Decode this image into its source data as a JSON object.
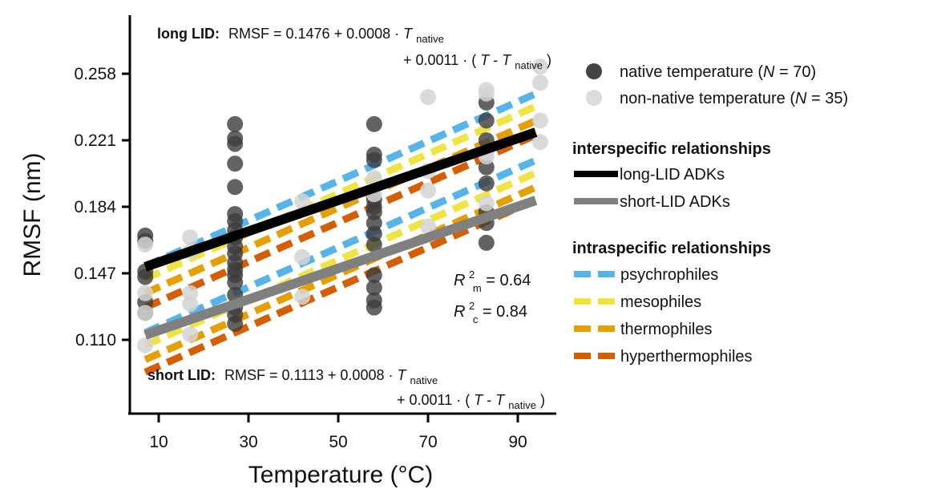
{
  "chart_data": {
    "type": "scatter",
    "title": "",
    "xlabel": "Temperature (°C)",
    "ylabel": "RMSF (nm)",
    "xlim": [
      3,
      96
    ],
    "ylim": [
      0.092,
      0.268
    ],
    "xticks": [
      10,
      30,
      50,
      70,
      90
    ],
    "xtick_labels": [
      "10",
      "30",
      "50",
      "70",
      "90"
    ],
    "yticks": [
      0.11,
      0.147,
      0.184,
      0.221,
      0.258
    ],
    "ytick_labels": [
      "0.110",
      "0.147",
      "0.184",
      "0.221",
      "0.258"
    ],
    "grid": false,
    "legend_placement": "right",
    "scatter_series": [
      {
        "name": "native temperature",
        "label": "native temperature (",
        "n_label": "N",
        "n_value": " = 70)",
        "color": "#3c3c3c",
        "points": [
          [
            7,
            0.168
          ],
          [
            7,
            0.165
          ],
          [
            7,
            0.148
          ],
          [
            7,
            0.145
          ],
          [
            7,
            0.131
          ],
          [
            7,
            0.125
          ],
          [
            27,
            0.23
          ],
          [
            27,
            0.222
          ],
          [
            27,
            0.219
          ],
          [
            27,
            0.208
          ],
          [
            27,
            0.195
          ],
          [
            27,
            0.18
          ],
          [
            27,
            0.176
          ],
          [
            27,
            0.171
          ],
          [
            27,
            0.167
          ],
          [
            27,
            0.162
          ],
          [
            27,
            0.158
          ],
          [
            27,
            0.153
          ],
          [
            27,
            0.149
          ],
          [
            27,
            0.146
          ],
          [
            27,
            0.142
          ],
          [
            27,
            0.135
          ],
          [
            27,
            0.128
          ],
          [
            27,
            0.124
          ],
          [
            27,
            0.119
          ],
          [
            58,
            0.23
          ],
          [
            58,
            0.213
          ],
          [
            58,
            0.21
          ],
          [
            58,
            0.188
          ],
          [
            58,
            0.184
          ],
          [
            58,
            0.181
          ],
          [
            58,
            0.175
          ],
          [
            58,
            0.169
          ],
          [
            58,
            0.163
          ],
          [
            58,
            0.146
          ],
          [
            58,
            0.139
          ],
          [
            58,
            0.132
          ],
          [
            58,
            0.128
          ],
          [
            83,
            0.242
          ],
          [
            83,
            0.232
          ],
          [
            83,
            0.221
          ],
          [
            83,
            0.206
          ],
          [
            83,
            0.197
          ],
          [
            83,
            0.181
          ],
          [
            83,
            0.175
          ],
          [
            83,
            0.164
          ]
        ]
      },
      {
        "name": "non-native temperature",
        "label": "non-native temperature (",
        "n_label": "N",
        "n_value": " = 35)",
        "color": "#d4d4d4",
        "points": [
          [
            7,
            0.163
          ],
          [
            7,
            0.136
          ],
          [
            7,
            0.125
          ],
          [
            7,
            0.107
          ],
          [
            17,
            0.167
          ],
          [
            17,
            0.159
          ],
          [
            17,
            0.136
          ],
          [
            17,
            0.13
          ],
          [
            17,
            0.113
          ],
          [
            42,
            0.187
          ],
          [
            42,
            0.156
          ],
          [
            42,
            0.134
          ],
          [
            58,
            0.2
          ],
          [
            58,
            0.191
          ],
          [
            70,
            0.245
          ],
          [
            70,
            0.204
          ],
          [
            70,
            0.193
          ],
          [
            70,
            0.173
          ],
          [
            83,
            0.249
          ],
          [
            83,
            0.247
          ],
          [
            83,
            0.214
          ],
          [
            83,
            0.212
          ],
          [
            83,
            0.186
          ],
          [
            95,
            0.262
          ],
          [
            95,
            0.253
          ],
          [
            95,
            0.232
          ],
          [
            95,
            0.22
          ]
        ]
      }
    ],
    "interspecific": {
      "title": "interspecific relationships",
      "lines": [
        {
          "name": "long-LID ADKs",
          "color": "#000000",
          "x": [
            7,
            94
          ],
          "y": [
            0.1506,
            0.2255
          ]
        },
        {
          "name": "short-LID ADKs",
          "color": "#808080",
          "x": [
            7,
            94
          ],
          "y": [
            0.1127,
            0.1876
          ]
        }
      ]
    },
    "intraspecific": {
      "title": "intraspecific relationships",
      "groups": [
        {
          "name": "psychrophiles",
          "color": "#56b4e9",
          "long": [
            [
              7,
              0.151
            ],
            [
              95,
              0.248
            ]
          ],
          "short": [
            [
              7,
              0.114
            ],
            [
              95,
              0.211
            ]
          ]
        },
        {
          "name": "mesophiles",
          "color": "#f0e442",
          "long": [
            [
              7,
              0.144
            ],
            [
              95,
              0.241
            ]
          ],
          "short": [
            [
              7,
              0.107
            ],
            [
              95,
              0.204
            ]
          ]
        },
        {
          "name": "thermophiles",
          "color": "#e69f00",
          "long": [
            [
              7,
              0.136
            ],
            [
              95,
              0.233
            ]
          ],
          "short": [
            [
              7,
              0.099
            ],
            [
              95,
              0.196
            ]
          ]
        },
        {
          "name": "hyperthermophiles",
          "color": "#d55e00",
          "long": [
            [
              7,
              0.128
            ],
            [
              95,
              0.225
            ]
          ],
          "short": [
            [
              7,
              0.092
            ],
            [
              95,
              0.189
            ]
          ]
        }
      ]
    },
    "annotations": {
      "long_eq": {
        "prefix": "long LID:",
        "line1": "RMSF = 0.1476 + 0.0008 · ",
        "T": "T",
        "native": "native",
        "line2a": "+ 0.0011 · (",
        "line2b": " - ",
        "line2c": ")"
      },
      "short_eq": {
        "prefix": "short LID:",
        "line1": "RMSF = 0.1113 + 0.0008 · ",
        "T": "T",
        "native": "native",
        "line2a": "+ 0.0011 · (",
        "line2b": " - ",
        "line2c": ")"
      },
      "r2m": {
        "R": "R",
        "sup": "2",
        "sub": "m",
        "value": " = 0.64"
      },
      "r2c": {
        "R": "R",
        "sup": "2",
        "sub": "c",
        "value": " = 0.84"
      }
    }
  }
}
